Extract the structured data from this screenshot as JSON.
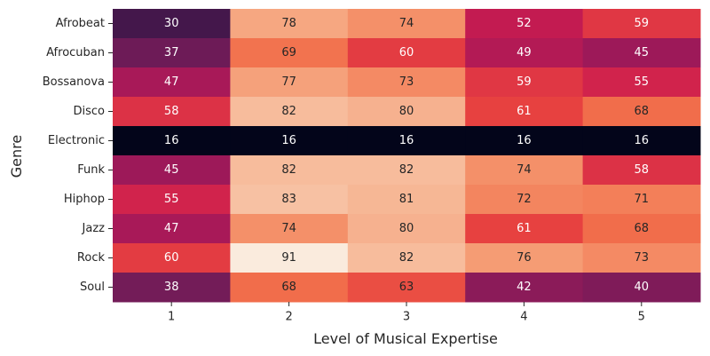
{
  "chart_data": {
    "type": "heatmap",
    "title": "",
    "xlabel": "Level of Musical Expertise",
    "ylabel": "Genre",
    "x_categories": [
      "1",
      "2",
      "3",
      "4",
      "5"
    ],
    "y_categories": [
      "Afrobeat",
      "Afrocuban",
      "Bossanova",
      "Disco",
      "Electronic",
      "Funk",
      "Hiphop",
      "Jazz",
      "Rock",
      "Soul"
    ],
    "values": [
      [
        30,
        78,
        74,
        52,
        59
      ],
      [
        37,
        69,
        60,
        49,
        45
      ],
      [
        47,
        77,
        73,
        59,
        55
      ],
      [
        58,
        82,
        80,
        61,
        68
      ],
      [
        16,
        16,
        16,
        16,
        16
      ],
      [
        45,
        82,
        82,
        74,
        58
      ],
      [
        55,
        83,
        81,
        72,
        71
      ],
      [
        47,
        74,
        80,
        61,
        68
      ],
      [
        60,
        91,
        82,
        76,
        73
      ],
      [
        38,
        68,
        63,
        42,
        40
      ]
    ],
    "colormap": "rocket",
    "vmin": 16,
    "vmax": 91,
    "colorbar": false,
    "grid": false
  }
}
